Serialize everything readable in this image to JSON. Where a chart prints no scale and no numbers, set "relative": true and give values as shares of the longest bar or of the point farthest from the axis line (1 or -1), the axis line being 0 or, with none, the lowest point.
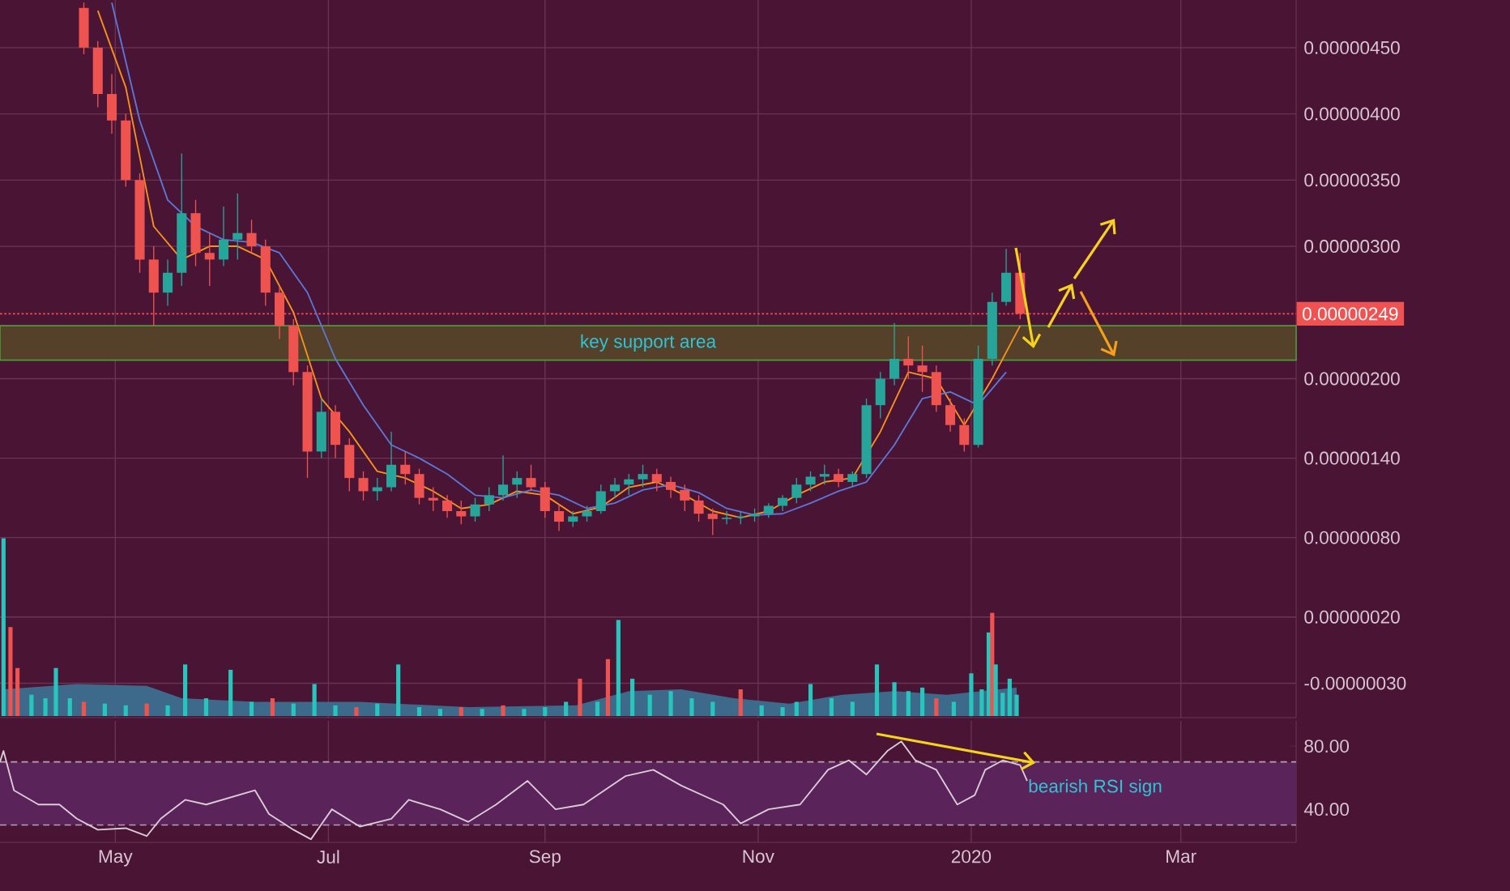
{
  "chart_data": [
    {
      "type": "candlestick",
      "xlim": [
        "2019-03-29",
        "2020-04-03"
      ],
      "ylim": [
        -5.6e-07,
        4.86e-06
      ],
      "grid": true,
      "xticks": [
        {
          "value": "2019-05-01",
          "label": "May"
        },
        {
          "value": "2019-07-01",
          "label": "Jul"
        },
        {
          "value": "2019-09-01",
          "label": "Sep"
        },
        {
          "value": "2019-11-01",
          "label": "Nov"
        },
        {
          "value": "2020-01-01",
          "label": "2020"
        },
        {
          "value": "2020-03-01",
          "label": "Mar"
        }
      ],
      "yticks": [
        {
          "value": 4.5e-06,
          "label": "0.00000450"
        },
        {
          "value": 4e-06,
          "label": "0.00000400"
        },
        {
          "value": 3.5e-06,
          "label": "0.00000350"
        },
        {
          "value": 3e-06,
          "label": "0.00000300"
        },
        {
          "value": 2e-06,
          "label": "0.00000200"
        },
        {
          "value": 1.4e-06,
          "label": "0.00000140"
        },
        {
          "value": 8e-07,
          "label": "0.00000080"
        },
        {
          "value": 2e-07,
          "label": "0.00000020"
        },
        {
          "value": -3e-07,
          "label": "-0.00000030"
        }
      ],
      "x": [
        "2019-04-22",
        "2019-04-26",
        "2019-04-30",
        "2019-05-04",
        "2019-05-08",
        "2019-05-12",
        "2019-05-16",
        "2019-05-20",
        "2019-05-24",
        "2019-05-28",
        "2019-06-01",
        "2019-06-05",
        "2019-06-09",
        "2019-06-13",
        "2019-06-17",
        "2019-06-21",
        "2019-06-25",
        "2019-06-29",
        "2019-07-03",
        "2019-07-07",
        "2019-07-11",
        "2019-07-15",
        "2019-07-19",
        "2019-07-23",
        "2019-07-27",
        "2019-07-31",
        "2019-08-04",
        "2019-08-08",
        "2019-08-12",
        "2019-08-16",
        "2019-08-20",
        "2019-08-24",
        "2019-08-28",
        "2019-09-01",
        "2019-09-05",
        "2019-09-09",
        "2019-09-13",
        "2019-09-17",
        "2019-09-21",
        "2019-09-25",
        "2019-09-29",
        "2019-10-03",
        "2019-10-07",
        "2019-10-11",
        "2019-10-15",
        "2019-10-19",
        "2019-10-23",
        "2019-10-27",
        "2019-10-31",
        "2019-11-04",
        "2019-11-08",
        "2019-11-12",
        "2019-11-16",
        "2019-11-20",
        "2019-11-24",
        "2019-11-28",
        "2019-12-02",
        "2019-12-06",
        "2019-12-10",
        "2019-12-14",
        "2019-12-18",
        "2019-12-22",
        "2019-12-26",
        "2019-12-30",
        "2020-01-03",
        "2020-01-07",
        "2020-01-11",
        "2020-01-15"
      ],
      "ohlc": [
        [
          4.8e-06,
          4.84e-06,
          4.45e-06,
          4.5e-06
        ],
        [
          4.5e-06,
          4.55e-06,
          4.05e-06,
          4.15e-06
        ],
        [
          4.15e-06,
          4.3e-06,
          3.85e-06,
          3.95e-06
        ],
        [
          3.95e-06,
          4e-06,
          3.45e-06,
          3.5e-06
        ],
        [
          3.5e-06,
          3.55e-06,
          2.8e-06,
          2.9e-06
        ],
        [
          2.9e-06,
          3e-06,
          2.4e-06,
          2.65e-06
        ],
        [
          2.65e-06,
          2.9e-06,
          2.55e-06,
          2.8e-06
        ],
        [
          2.8e-06,
          3.7e-06,
          2.7e-06,
          3.25e-06
        ],
        [
          3.25e-06,
          3.35e-06,
          2.85e-06,
          2.95e-06
        ],
        [
          2.95e-06,
          3.1e-06,
          2.7e-06,
          2.9e-06
        ],
        [
          2.9e-06,
          3.3e-06,
          2.85e-06,
          3.05e-06
        ],
        [
          3.05e-06,
          3.4e-06,
          2.9e-06,
          3.1e-06
        ],
        [
          3.1e-06,
          3.2e-06,
          2.95e-06,
          3e-06
        ],
        [
          3e-06,
          3.05e-06,
          2.55e-06,
          2.65e-06
        ],
        [
          2.65e-06,
          2.7e-06,
          2.3e-06,
          2.4e-06
        ],
        [
          2.4e-06,
          2.45e-06,
          1.95e-06,
          2.05e-06
        ],
        [
          2.05e-06,
          2.1e-06,
          1.25e-06,
          1.45e-06
        ],
        [
          1.45e-06,
          1.85e-06,
          1.4e-06,
          1.75e-06
        ],
        [
          1.75e-06,
          1.8e-06,
          1.4e-06,
          1.5e-06
        ],
        [
          1.5e-06,
          1.55e-06,
          1.15e-06,
          1.25e-06
        ],
        [
          1.25e-06,
          1.3e-06,
          1.08e-06,
          1.15e-06
        ],
        [
          1.15e-06,
          1.25e-06,
          1.08e-06,
          1.18e-06
        ],
        [
          1.18e-06,
          1.6e-06,
          1.15e-06,
          1.35e-06
        ],
        [
          1.35e-06,
          1.45e-06,
          1.2e-06,
          1.28e-06
        ],
        [
          1.28e-06,
          1.32e-06,
          1.05e-06,
          1.1e-06
        ],
        [
          1.1e-06,
          1.18e-06,
          1e-06,
          1.08e-06
        ],
        [
          1.08e-06,
          1.12e-06,
          9.5e-07,
          1e-06
        ],
        [
          1e-06,
          1.08e-06,
          9e-07,
          9.6e-07
        ],
        [
          9.6e-07,
          1.1e-06,
          9.2e-07,
          1.05e-06
        ],
        [
          1.05e-06,
          1.18e-06,
          1e-06,
          1.12e-06
        ],
        [
          1.12e-06,
          1.42e-06,
          1.08e-06,
          1.2e-06
        ],
        [
          1.2e-06,
          1.3e-06,
          1.1e-06,
          1.25e-06
        ],
        [
          1.25e-06,
          1.35e-06,
          1.15e-06,
          1.18e-06
        ],
        [
          1.18e-06,
          1.22e-06,
          9.5e-07,
          1e-06
        ],
        [
          1e-06,
          1.05e-06,
          8.5e-07,
          9.2e-07
        ],
        [
          9.2e-07,
          1e-06,
          8.8e-07,
          9.6e-07
        ],
        [
          9.6e-07,
          1.04e-06,
          9.2e-07,
          1e-06
        ],
        [
          1e-06,
          1.2e-06,
          9.8e-07,
          1.15e-06
        ],
        [
          1.15e-06,
          1.25e-06,
          1.1e-06,
          1.2e-06
        ],
        [
          1.2e-06,
          1.28e-06,
          1.12e-06,
          1.24e-06
        ],
        [
          1.24e-06,
          1.35e-06,
          1.18e-06,
          1.28e-06
        ],
        [
          1.28e-06,
          1.32e-06,
          1.15e-06,
          1.22e-06
        ],
        [
          1.22e-06,
          1.26e-06,
          1.1e-06,
          1.16e-06
        ],
        [
          1.16e-06,
          1.2e-06,
          1e-06,
          1.08e-06
        ],
        [
          1.08e-06,
          1.12e-06,
          9.2e-07,
          9.8e-07
        ],
        [
          9.8e-07,
          1.02e-06,
          8.2e-07,
          9.4e-07
        ],
        [
          9.4e-07,
          1e-06,
          9e-07,
          9.5e-07
        ],
        [
          9.5e-07,
          1e-06,
          9e-07,
          9.6e-07
        ],
        [
          9.6e-07,
          1.02e-06,
          9.2e-07,
          9.8e-07
        ],
        [
          9.8e-07,
          1.06e-06,
          9.5e-07,
          1.04e-06
        ],
        [
          1.04e-06,
          1.12e-06,
          1e-06,
          1.1e-06
        ],
        [
          1.1e-06,
          1.25e-06,
          1.06e-06,
          1.2e-06
        ],
        [
          1.2e-06,
          1.3e-06,
          1.15e-06,
          1.26e-06
        ],
        [
          1.26e-06,
          1.35e-06,
          1.2e-06,
          1.28e-06
        ],
        [
          1.28e-06,
          1.32e-06,
          1.18e-06,
          1.22e-06
        ],
        [
          1.22e-06,
          1.3e-06,
          1.18e-06,
          1.28e-06
        ],
        [
          1.28e-06,
          1.85e-06,
          1.25e-06,
          1.8e-06
        ],
        [
          1.8e-06,
          2.05e-06,
          1.7e-06,
          2e-06
        ],
        [
          2e-06,
          2.42e-06,
          1.95e-06,
          2.15e-06
        ],
        [
          2.15e-06,
          2.32e-06,
          2e-06,
          2.1e-06
        ],
        [
          2.1e-06,
          2.25e-06,
          1.9e-06,
          2.05e-06
        ],
        [
          2.05e-06,
          2.1e-06,
          1.75e-06,
          1.8e-06
        ],
        [
          1.8e-06,
          1.85e-06,
          1.6e-06,
          1.65e-06
        ],
        [
          1.65e-06,
          1.7e-06,
          1.45e-06,
          1.5e-06
        ],
        [
          1.5e-06,
          2.25e-06,
          1.48e-06,
          2.15e-06
        ],
        [
          2.15e-06,
          2.65e-06,
          2.1e-06,
          2.58e-06
        ],
        [
          2.58e-06,
          2.98e-06,
          2.55e-06,
          2.8e-06
        ],
        [
          2.8e-06,
          2.95e-06,
          2.45e-06,
          2.49e-06
        ]
      ],
      "colors": [
        "#ef5350",
        "#ef5350",
        "#ef5350",
        "#ef5350",
        "#ef5350",
        "#ef5350",
        "#26a69a",
        "#26a69a",
        "#ef5350",
        "#ef5350",
        "#26a69a",
        "#26a69a",
        "#ef5350",
        "#ef5350",
        "#ef5350",
        "#ef5350",
        "#ef5350",
        "#26a69a",
        "#ef5350",
        "#ef5350",
        "#ef5350",
        "#26a69a",
        "#26a69a",
        "#ef5350",
        "#ef5350",
        "#ef5350",
        "#ef5350",
        "#ef5350",
        "#26a69a",
        "#26a69a",
        "#26a69a",
        "#26a69a",
        "#ef5350",
        "#ef5350",
        "#ef5350",
        "#26a69a",
        "#26a69a",
        "#26a69a",
        "#26a69a",
        "#26a69a",
        "#26a69a",
        "#ef5350",
        "#ef5350",
        "#ef5350",
        "#ef5350",
        "#ef5350",
        "#26a69a",
        "#26a69a",
        "#26a69a",
        "#26a69a",
        "#26a69a",
        "#26a69a",
        "#26a69a",
        "#26a69a",
        "#ef5350",
        "#26a69a",
        "#26a69a",
        "#26a69a",
        "#26a69a",
        "#ef5350",
        "#ef5350",
        "#ef5350",
        "#ef5350",
        "#ef5350",
        "#26a69a",
        "#26a69a",
        "#26a69a",
        "#ef5350"
      ],
      "series": [
        {
          "type": "line",
          "color": "#f7931a",
          "x": [
            "2019-04-26",
            "2019-05-04",
            "2019-05-12",
            "2019-05-20",
            "2019-05-28",
            "2019-06-05",
            "2019-06-13",
            "2019-06-21",
            "2019-06-29",
            "2019-07-07",
            "2019-07-15",
            "2019-07-23",
            "2019-07-31",
            "2019-08-08",
            "2019-08-16",
            "2019-08-24",
            "2019-09-01",
            "2019-09-09",
            "2019-09-17",
            "2019-09-25",
            "2019-10-03",
            "2019-10-11",
            "2019-10-19",
            "2019-10-27",
            "2019-11-04",
            "2019-11-12",
            "2019-11-20",
            "2019-11-28",
            "2019-12-06",
            "2019-12-14",
            "2019-12-22",
            "2019-12-30",
            "2020-01-07",
            "2020-01-15"
          ],
          "values": [
            4.78e-06,
            4.2e-06,
            3.15e-06,
            2.9e-06,
            3e-06,
            3e-06,
            2.9e-06,
            2.5e-06,
            1.85e-06,
            1.6e-06,
            1.3e-06,
            1.25e-06,
            1.15e-06,
            1.02e-06,
            1.05e-06,
            1.15e-06,
            1.12e-06,
            9.8e-07,
            1.03e-06,
            1.18e-06,
            1.22e-06,
            1.12e-06,
            1e-06,
            9.5e-07,
            1e-06,
            1.12e-06,
            1.22e-06,
            1.25e-06,
            1.6e-06,
            2.05e-06,
            2e-06,
            1.65e-06,
            2e-06,
            2.4e-06
          ]
        },
        {
          "type": "line",
          "color": "#5b78d6",
          "x": [
            "2019-04-30",
            "2019-05-08",
            "2019-05-16",
            "2019-05-24",
            "2019-06-01",
            "2019-06-09",
            "2019-06-17",
            "2019-06-25",
            "2019-07-03",
            "2019-07-11",
            "2019-07-19",
            "2019-07-27",
            "2019-08-04",
            "2019-08-12",
            "2019-08-20",
            "2019-08-28",
            "2019-09-05",
            "2019-09-13",
            "2019-09-21",
            "2019-09-29",
            "2019-10-07",
            "2019-10-15",
            "2019-10-23",
            "2019-10-31",
            "2019-11-08",
            "2019-11-16",
            "2019-11-24",
            "2019-12-02",
            "2019-12-10",
            "2019-12-18",
            "2019-12-26",
            "2020-01-03",
            "2020-01-11"
          ],
          "values": [
            4.84e-06,
            3.95e-06,
            3.35e-06,
            3.15e-06,
            3.05e-06,
            3.03e-06,
            2.95e-06,
            2.65e-06,
            2.15e-06,
            1.8e-06,
            1.5e-06,
            1.4e-06,
            1.28e-06,
            1.12e-06,
            1.1e-06,
            1.16e-06,
            1.12e-06,
            1.02e-06,
            1.06e-06,
            1.16e-06,
            1.2e-06,
            1.14e-06,
            1.02e-06,
            9.7e-07,
            9.8e-07,
            1.06e-06,
            1.15e-06,
            1.22e-06,
            1.5e-06,
            1.85e-06,
            1.9e-06,
            1.8e-06,
            2.05e-06
          ]
        }
      ],
      "bands": [
        {
          "axis": "y",
          "from": 2.14e-06,
          "to": 2.4e-06,
          "label": "key support area",
          "color": "#55402a"
        }
      ],
      "ref_lines": [
        {
          "axis": "y",
          "value": 2.49e-06,
          "label": "0.00000249",
          "color": "#f05252",
          "line_style": "dotted"
        }
      ]
    },
    {
      "type": "bar",
      "relative": true,
      "xlim": [
        "2019-03-29",
        "2020-04-03"
      ],
      "series": [
        {
          "type": "bar",
          "x": [
            "2019-03-30",
            "2019-04-01",
            "2019-04-03",
            "2019-04-07",
            "2019-04-11",
            "2019-04-14",
            "2019-04-18",
            "2019-04-22",
            "2019-04-28",
            "2019-05-04",
            "2019-05-10",
            "2019-05-16",
            "2019-05-21",
            "2019-05-27",
            "2019-06-03",
            "2019-06-09",
            "2019-06-15",
            "2019-06-21",
            "2019-06-27",
            "2019-07-03",
            "2019-07-09",
            "2019-07-15",
            "2019-07-21",
            "2019-07-27",
            "2019-08-02",
            "2019-08-08",
            "2019-08-14",
            "2019-08-20",
            "2019-08-26",
            "2019-09-01",
            "2019-09-07",
            "2019-09-11",
            "2019-09-16",
            "2019-09-19",
            "2019-09-22",
            "2019-09-26",
            "2019-10-01",
            "2019-10-07",
            "2019-10-13",
            "2019-10-19",
            "2019-10-27",
            "2019-11-02",
            "2019-11-08",
            "2019-11-12",
            "2019-11-16",
            "2019-11-22",
            "2019-11-28",
            "2019-12-05",
            "2019-12-10",
            "2019-12-14",
            "2019-12-18",
            "2019-12-22",
            "2019-12-27",
            "2020-01-01",
            "2020-01-04",
            "2020-01-06",
            "2020-01-07",
            "2020-01-08",
            "2020-01-10",
            "2020-01-12",
            "2020-01-14"
          ],
          "values": [
            1.0,
            0.5,
            0.27,
            0.12,
            0.1,
            0.27,
            0.1,
            0.08,
            0.07,
            0.06,
            0.07,
            0.06,
            0.29,
            0.1,
            0.26,
            0.08,
            0.1,
            0.07,
            0.18,
            0.06,
            0.05,
            0.07,
            0.29,
            0.05,
            0.04,
            0.05,
            0.04,
            0.06,
            0.04,
            0.05,
            0.08,
            0.21,
            0.08,
            0.32,
            0.54,
            0.21,
            0.12,
            0.14,
            0.1,
            0.08,
            0.15,
            0.06,
            0.05,
            0.08,
            0.18,
            0.1,
            0.08,
            0.29,
            0.19,
            0.14,
            0.16,
            0.1,
            0.08,
            0.24,
            0.15,
            0.47,
            0.58,
            0.29,
            0.13,
            0.21,
            0.12
          ],
          "colors": [
            "#26c6bd",
            "#ef5350",
            "#ef5350",
            "#26c6bd",
            "#26c6bd",
            "#26c6bd",
            "#26c6bd",
            "#ef5350",
            "#26c6bd",
            "#26c6bd",
            "#ef5350",
            "#26c6bd",
            "#26c6bd",
            "#26c6bd",
            "#26c6bd",
            "#26c6bd",
            "#ef5350",
            "#26c6bd",
            "#26c6bd",
            "#26c6bd",
            "#ef5350",
            "#26c6bd",
            "#26c6bd",
            "#26c6bd",
            "#26c6bd",
            "#ef5350",
            "#26c6bd",
            "#ef5350",
            "#26c6bd",
            "#26c6bd",
            "#26c6bd",
            "#ef5350",
            "#26c6bd",
            "#ef5350",
            "#26c6bd",
            "#26c6bd",
            "#26c6bd",
            "#26c6bd",
            "#26c6bd",
            "#26c6bd",
            "#ef5350",
            "#26c6bd",
            "#26c6bd",
            "#26c6bd",
            "#26c6bd",
            "#26c6bd",
            "#26c6bd",
            "#26c6bd",
            "#26c6bd",
            "#26c6bd",
            "#26c6bd",
            "#ef5350",
            "#26c6bd",
            "#26c6bd",
            "#26c6bd",
            "#26c6bd",
            "#ef5350",
            "#26c6bd",
            "#26c6bd",
            "#26c6bd",
            "#26c6bd"
          ]
        },
        {
          "type": "area",
          "color": "#3d6a8a",
          "x": [
            "2019-03-30",
            "2019-04-20",
            "2019-05-10",
            "2019-05-20",
            "2019-06-10",
            "2019-07-10",
            "2019-08-10",
            "2019-09-10",
            "2019-09-25",
            "2019-10-10",
            "2019-10-25",
            "2019-11-10",
            "2019-11-25",
            "2019-12-10",
            "2019-12-25",
            "2020-01-14"
          ],
          "values": [
            0.15,
            0.18,
            0.17,
            0.1,
            0.08,
            0.08,
            0.05,
            0.06,
            0.14,
            0.15,
            0.1,
            0.07,
            0.12,
            0.14,
            0.12,
            0.16
          ]
        }
      ]
    },
    {
      "type": "line",
      "xlim": [
        "2019-03-29",
        "2020-04-03"
      ],
      "ylim": [
        19,
        96
      ],
      "grid": "x",
      "color": "#dccbd8",
      "tick_labels": "y",
      "xticks": [
        {
          "value": "2019-05-01",
          "label": null
        },
        {
          "value": "2019-07-01",
          "label": null
        },
        {
          "value": "2019-09-01",
          "label": null
        },
        {
          "value": "2019-11-01",
          "label": null
        },
        {
          "value": "2020-01-01",
          "label": null
        },
        {
          "value": "2020-03-01",
          "label": null
        }
      ],
      "yticks": [
        {
          "value": 80,
          "label": "80.00"
        },
        {
          "value": 40,
          "label": "40.00"
        }
      ],
      "x": [
        "2019-03-29",
        "2019-03-30",
        "2019-04-02",
        "2019-04-09",
        "2019-04-15",
        "2019-04-20",
        "2019-04-26",
        "2019-05-04",
        "2019-05-10",
        "2019-05-14",
        "2019-05-21",
        "2019-05-27",
        "2019-06-10",
        "2019-06-14",
        "2019-06-21",
        "2019-06-26",
        "2019-07-02",
        "2019-07-10",
        "2019-07-19",
        "2019-07-24",
        "2019-08-02",
        "2019-08-10",
        "2019-08-18",
        "2019-08-27",
        "2019-09-04",
        "2019-09-12",
        "2019-09-24",
        "2019-10-02",
        "2019-10-10",
        "2019-10-22",
        "2019-10-27",
        "2019-11-04",
        "2019-11-13",
        "2019-11-21",
        "2019-11-27",
        "2019-12-02",
        "2019-12-08",
        "2019-12-12",
        "2019-12-16",
        "2019-12-22",
        "2019-12-28",
        "2020-01-02",
        "2020-01-05",
        "2020-01-10",
        "2020-01-15",
        "2020-01-17"
      ],
      "values": [
        70,
        77,
        52,
        43,
        43,
        34,
        27,
        28,
        23,
        34,
        46,
        43,
        52,
        37,
        27,
        21,
        40,
        29,
        34,
        46,
        40,
        32,
        43,
        58,
        40,
        43,
        61,
        65,
        55,
        43,
        31,
        40,
        43,
        65,
        71,
        62,
        77,
        83,
        71,
        65,
        43,
        49,
        65,
        71,
        68,
        58
      ],
      "bands": [
        {
          "axis": "y",
          "from": 30,
          "to": 70,
          "color": "#5a2359"
        }
      ],
      "ref_lines": [
        {
          "axis": "y",
          "value": 70,
          "color": "#b9a0b5",
          "line_style": "dashed"
        },
        {
          "axis": "y",
          "value": 30,
          "color": "#b9a0b5",
          "line_style": "dashed"
        }
      ],
      "annotations": [
        "bearish RSI sign"
      ]
    }
  ]
}
